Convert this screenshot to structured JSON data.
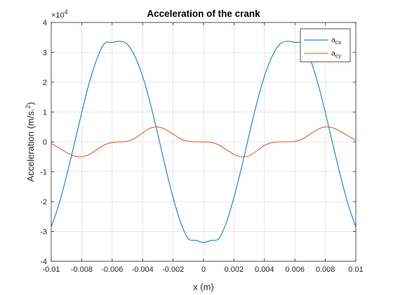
{
  "chart_data": {
    "type": "line",
    "title": "Acceleration of the crank",
    "xlabel": "x (m)",
    "ylabel": "Acceleration (m/s.²)",
    "ylabel_text": "Acceleration (m/s.",
    "ylabel_sup": "2",
    "ylabel_close": ")",
    "exponent_base": "×10",
    "exponent_power": "4",
    "xlim": [
      -0.01,
      0.01
    ],
    "ylim": [
      -4,
      4
    ],
    "y_scale_factor": 10000,
    "xticks": [
      -0.01,
      -0.008,
      -0.006,
      -0.004,
      -0.002,
      0,
      0.002,
      0.004,
      0.006,
      0.008,
      0.01
    ],
    "xtick_labels": [
      "-0.01",
      "-0.008",
      "-0.006",
      "-0.004",
      "-0.002",
      "0",
      "0.002",
      "0.004",
      "0.006",
      "0.008",
      "0.01"
    ],
    "yticks": [
      -4,
      -3,
      -2,
      -1,
      0,
      1,
      2,
      3,
      4
    ],
    "ytick_labels": [
      "-4",
      "-3",
      "-2",
      "-1",
      "0",
      "1",
      "2",
      "3",
      "4"
    ],
    "grid": true,
    "legend_position": "top-right",
    "series": [
      {
        "name": "a_cx",
        "legend_main": "a",
        "legend_sub": "cx",
        "color": "#0072BD",
        "x": [
          -0.01,
          -0.0095,
          -0.009,
          -0.0085,
          -0.008,
          -0.0075,
          -0.007,
          -0.0065,
          -0.006,
          -0.0055,
          -0.005,
          -0.0045,
          -0.004,
          -0.0035,
          -0.003,
          -0.0025,
          -0.002,
          -0.0015,
          -0.001,
          -0.0005,
          0,
          0.0005,
          0.001,
          0.0015,
          0.002,
          0.0025,
          0.003,
          0.0035,
          0.004,
          0.0045,
          0.005,
          0.0055,
          0.006,
          0.0065,
          0.007,
          0.0075,
          0.008,
          0.0085,
          0.009,
          0.0095,
          0.01
        ],
        "y": [
          -2.85,
          -2.1,
          -1.15,
          -0.1,
          0.98,
          1.98,
          2.78,
          3.3,
          3.33,
          3.37,
          3.27,
          2.86,
          2.2,
          1.3,
          0.25,
          -0.85,
          -1.86,
          -2.7,
          -3.24,
          -3.3,
          -3.37,
          -3.3,
          -3.24,
          -2.7,
          -1.86,
          -0.85,
          0.25,
          1.3,
          2.2,
          2.86,
          3.27,
          3.37,
          3.33,
          3.3,
          2.78,
          1.98,
          0.98,
          -0.1,
          -1.15,
          -2.1,
          -2.85
        ]
      },
      {
        "name": "a_cy",
        "legend_main": "a",
        "legend_sub": "cy",
        "color": "#D95319",
        "x": [
          -0.01,
          -0.0095,
          -0.009,
          -0.0085,
          -0.008,
          -0.0075,
          -0.007,
          -0.0065,
          -0.006,
          -0.0055,
          -0.005,
          -0.0045,
          -0.004,
          -0.0035,
          -0.003,
          -0.0025,
          -0.002,
          -0.0015,
          -0.001,
          -0.0005,
          0,
          0.0005,
          0.001,
          0.0015,
          0.002,
          0.0025,
          0.003,
          0.0035,
          0.004,
          0.0045,
          0.005,
          0.0055,
          0.006,
          0.0065,
          0.007,
          0.0075,
          0.008,
          0.0085,
          0.009,
          0.0095,
          0.01
        ],
        "y": [
          -0.05,
          -0.2,
          -0.35,
          -0.47,
          -0.5,
          -0.42,
          -0.26,
          -0.1,
          -0.02,
          0.0,
          0.02,
          0.12,
          0.3,
          0.46,
          0.5,
          0.42,
          0.26,
          0.1,
          0.02,
          0.0,
          0.0,
          -0.02,
          -0.1,
          -0.26,
          -0.42,
          -0.5,
          -0.46,
          -0.3,
          -0.12,
          -0.02,
          0.0,
          0.0,
          0.02,
          0.1,
          0.26,
          0.42,
          0.5,
          0.47,
          0.35,
          0.2,
          0.05
        ]
      }
    ]
  }
}
